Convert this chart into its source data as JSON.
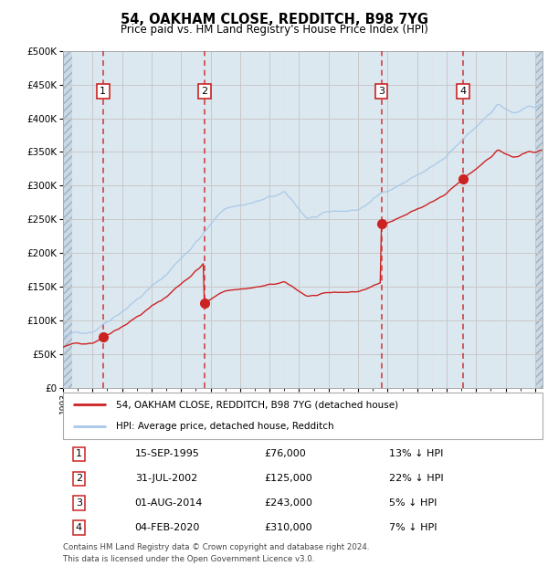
{
  "title": "54, OAKHAM CLOSE, REDDITCH, B98 7YG",
  "subtitle": "Price paid vs. HM Land Registry's House Price Index (HPI)",
  "ytick_values": [
    0,
    50000,
    100000,
    150000,
    200000,
    250000,
    300000,
    350000,
    400000,
    450000,
    500000
  ],
  "ylim": [
    0,
    500000
  ],
  "xlim_start": 1993.0,
  "xlim_end": 2025.5,
  "sale_dates": [
    1995.71,
    2002.58,
    2014.58,
    2020.09
  ],
  "sale_prices": [
    76000,
    125000,
    243000,
    310000
  ],
  "sale_labels": [
    "1",
    "2",
    "3",
    "4"
  ],
  "legend_line1": "54, OAKHAM CLOSE, REDDITCH, B98 7YG (detached house)",
  "legend_line2": "HPI: Average price, detached house, Redditch",
  "table_data": [
    [
      "1",
      "15-SEP-1995",
      "£76,000",
      "13% ↓ HPI"
    ],
    [
      "2",
      "31-JUL-2002",
      "£125,000",
      "22% ↓ HPI"
    ],
    [
      "3",
      "01-AUG-2014",
      "£243,000",
      "5% ↓ HPI"
    ],
    [
      "4",
      "04-FEB-2020",
      "£310,000",
      "7% ↓ HPI"
    ]
  ],
  "footer": "Contains HM Land Registry data © Crown copyright and database right 2024.\nThis data is licensed under the Open Government Licence v3.0.",
  "hpi_color": "#a8c8e8",
  "sale_line_color": "#cc2222",
  "vline_color": "#cc2222",
  "grid_color": "#c8c8c8",
  "bg_color": "#dce8f0"
}
